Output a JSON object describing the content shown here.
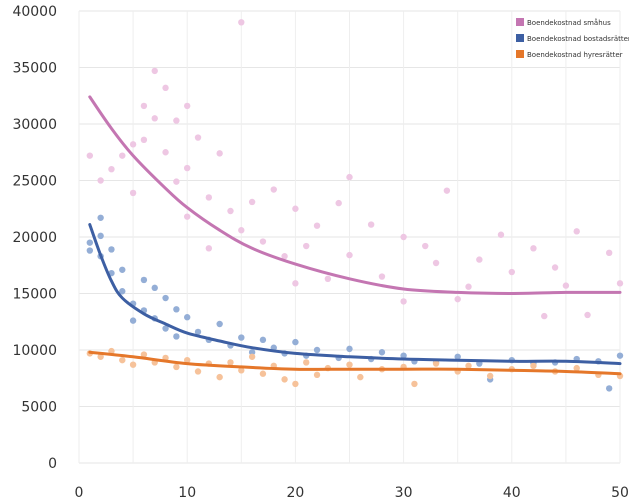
{
  "chart_data": {
    "type": "scatter",
    "title": "",
    "xlabel": "",
    "ylabel": "",
    "xlim": [
      0,
      50
    ],
    "ylim": [
      0,
      40000
    ],
    "x_ticks": [
      "0",
      "10",
      "20",
      "30",
      "40",
      "50"
    ],
    "y_ticks": [
      "0",
      "5000",
      "10000",
      "15000",
      "20000",
      "25000",
      "30000",
      "35000",
      "40000"
    ],
    "grid": true,
    "legend_position": "top-right",
    "series": [
      {
        "name": "Boendekostnad småhus",
        "point_color": "#eec7e3",
        "trend_color": "#c476b2",
        "trend": [
          [
            1,
            32400
          ],
          [
            3,
            29600
          ],
          [
            5,
            27200
          ],
          [
            8,
            24300
          ],
          [
            10,
            22600
          ],
          [
            13,
            20600
          ],
          [
            16,
            19000
          ],
          [
            20,
            17600
          ],
          [
            25,
            16300
          ],
          [
            30,
            15400
          ],
          [
            35,
            15100
          ],
          [
            40,
            15000
          ],
          [
            45,
            15100
          ],
          [
            50,
            15100
          ]
        ],
        "points": [
          [
            1,
            27200
          ],
          [
            2,
            25000
          ],
          [
            3,
            26000
          ],
          [
            4,
            27200
          ],
          [
            5,
            28200
          ],
          [
            5,
            23900
          ],
          [
            6,
            31600
          ],
          [
            6,
            28600
          ],
          [
            7,
            34700
          ],
          [
            7,
            30500
          ],
          [
            8,
            33200
          ],
          [
            8,
            27500
          ],
          [
            9,
            30300
          ],
          [
            9,
            24900
          ],
          [
            10,
            31600
          ],
          [
            10,
            26100
          ],
          [
            10,
            21800
          ],
          [
            11,
            28800
          ],
          [
            12,
            23500
          ],
          [
            12,
            19000
          ],
          [
            13,
            27400
          ],
          [
            14,
            22300
          ],
          [
            15,
            39000
          ],
          [
            15,
            20600
          ],
          [
            16,
            23100
          ],
          [
            17,
            19600
          ],
          [
            18,
            24200
          ],
          [
            19,
            18300
          ],
          [
            20,
            22500
          ],
          [
            20,
            15900
          ],
          [
            21,
            19200
          ],
          [
            22,
            21000
          ],
          [
            23,
            16300
          ],
          [
            24,
            23000
          ],
          [
            25,
            25300
          ],
          [
            25,
            18400
          ],
          [
            27,
            21100
          ],
          [
            28,
            16500
          ],
          [
            30,
            20000
          ],
          [
            30,
            14300
          ],
          [
            32,
            19200
          ],
          [
            33,
            17700
          ],
          [
            34,
            24100
          ],
          [
            35,
            14500
          ],
          [
            36,
            15600
          ],
          [
            37,
            18000
          ],
          [
            39,
            20200
          ],
          [
            40,
            16900
          ],
          [
            42,
            19000
          ],
          [
            43,
            13000
          ],
          [
            44,
            17300
          ],
          [
            45,
            15700
          ],
          [
            46,
            20500
          ],
          [
            47,
            13100
          ],
          [
            49,
            18600
          ],
          [
            50,
            15900
          ]
        ]
      },
      {
        "name": "Boendekostnad bostadsrätter",
        "point_color": "#94aed6",
        "trend_color": "#3d5fa3",
        "trend": [
          [
            1,
            21100
          ],
          [
            2,
            18400
          ],
          [
            3,
            16100
          ],
          [
            4,
            14600
          ],
          [
            6,
            13200
          ],
          [
            8,
            12300
          ],
          [
            10,
            11500
          ],
          [
            13,
            10800
          ],
          [
            16,
            10200
          ],
          [
            20,
            9700
          ],
          [
            25,
            9400
          ],
          [
            30,
            9200
          ],
          [
            35,
            9100
          ],
          [
            40,
            9000
          ],
          [
            45,
            9000
          ],
          [
            50,
            8800
          ]
        ],
        "points": [
          [
            1,
            18800
          ],
          [
            1,
            19500
          ],
          [
            2,
            20100
          ],
          [
            2,
            21700
          ],
          [
            2,
            18300
          ],
          [
            3,
            18900
          ],
          [
            3,
            16800
          ],
          [
            4,
            17100
          ],
          [
            4,
            15200
          ],
          [
            5,
            14100
          ],
          [
            5,
            12600
          ],
          [
            6,
            16200
          ],
          [
            6,
            13500
          ],
          [
            7,
            12800
          ],
          [
            7,
            15500
          ],
          [
            8,
            14600
          ],
          [
            8,
            11900
          ],
          [
            9,
            13600
          ],
          [
            9,
            11200
          ],
          [
            10,
            12900
          ],
          [
            11,
            11600
          ],
          [
            12,
            10900
          ],
          [
            13,
            12300
          ],
          [
            14,
            10400
          ],
          [
            15,
            11100
          ],
          [
            16,
            9800
          ],
          [
            17,
            10900
          ],
          [
            18,
            10200
          ],
          [
            19,
            9700
          ],
          [
            20,
            10700
          ],
          [
            21,
            9500
          ],
          [
            22,
            10000
          ],
          [
            24,
            9300
          ],
          [
            25,
            10100
          ],
          [
            27,
            9200
          ],
          [
            28,
            9800
          ],
          [
            30,
            9500
          ],
          [
            31,
            9000
          ],
          [
            33,
            8900
          ],
          [
            35,
            9400
          ],
          [
            37,
            8800
          ],
          [
            38,
            7400
          ],
          [
            40,
            9100
          ],
          [
            42,
            8800
          ],
          [
            44,
            8900
          ],
          [
            46,
            9200
          ],
          [
            48,
            9000
          ],
          [
            49,
            6600
          ],
          [
            50,
            9500
          ]
        ]
      },
      {
        "name": "Boendekostnad hyresrätter",
        "point_color": "#f6c29a",
        "trend_color": "#e5772a",
        "trend": [
          [
            1,
            9800
          ],
          [
            5,
            9400
          ],
          [
            10,
            8800
          ],
          [
            15,
            8500
          ],
          [
            20,
            8300
          ],
          [
            25,
            8300
          ],
          [
            30,
            8300
          ],
          [
            35,
            8300
          ],
          [
            40,
            8200
          ],
          [
            45,
            8100
          ],
          [
            50,
            7900
          ]
        ],
        "points": [
          [
            1,
            9700
          ],
          [
            2,
            9400
          ],
          [
            3,
            9900
          ],
          [
            4,
            9100
          ],
          [
            5,
            8700
          ],
          [
            6,
            9600
          ],
          [
            7,
            8900
          ],
          [
            8,
            9300
          ],
          [
            9,
            8500
          ],
          [
            10,
            9100
          ],
          [
            11,
            8100
          ],
          [
            12,
            8800
          ],
          [
            13,
            7600
          ],
          [
            14,
            8900
          ],
          [
            15,
            8200
          ],
          [
            16,
            9400
          ],
          [
            17,
            7900
          ],
          [
            18,
            8600
          ],
          [
            19,
            7400
          ],
          [
            20,
            7000
          ],
          [
            21,
            8900
          ],
          [
            22,
            7800
          ],
          [
            23,
            8400
          ],
          [
            25,
            8700
          ],
          [
            26,
            7600
          ],
          [
            28,
            8300
          ],
          [
            30,
            8500
          ],
          [
            31,
            7000
          ],
          [
            33,
            8800
          ],
          [
            35,
            8100
          ],
          [
            36,
            8600
          ],
          [
            38,
            7700
          ],
          [
            40,
            8300
          ],
          [
            42,
            8600
          ],
          [
            44,
            8100
          ],
          [
            46,
            8400
          ],
          [
            48,
            7800
          ],
          [
            50,
            7700
          ]
        ]
      }
    ]
  }
}
